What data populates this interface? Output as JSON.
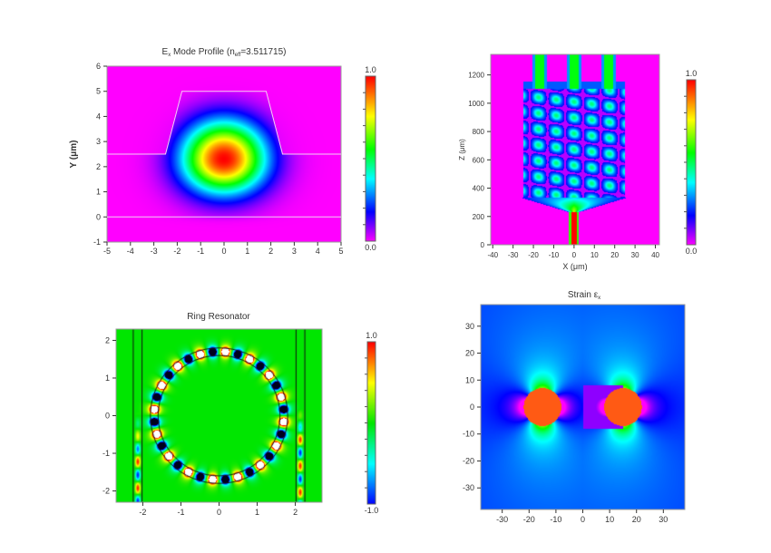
{
  "chart_data": [
    {
      "type": "heatmap",
      "id": "mode",
      "title": "Ex Mode Profile (neff=3.511715)",
      "title_parts": {
        "main": "E",
        "sub1": "x",
        "mid": " Mode Profile (n",
        "sub2": "eff",
        "tail": "=3.511715)"
      },
      "xlabel": "",
      "ylabel": "Y (μm)",
      "xlim": [
        -5,
        5
      ],
      "ylim": [
        -1,
        6
      ],
      "xticks": [
        -5,
        -4,
        -3,
        -2,
        -1,
        0,
        1,
        2,
        3,
        4,
        5
      ],
      "yticks": [
        -1,
        0,
        1,
        2,
        3,
        4,
        5,
        6
      ],
      "colorbar": {
        "min_label": "0.0",
        "max_label": "1.0",
        "range": [
          0,
          1
        ],
        "colormap": "magenta-blue-cyan-green-yellow-red"
      },
      "structure": {
        "waveguide_top_y": 5,
        "slab_y": 2.5,
        "substrate_y": 0,
        "top_x": [
          -1.8,
          1.8
        ],
        "base_x": [
          -2.5,
          2.5
        ]
      },
      "peak": {
        "x": 0,
        "y": 2.3,
        "value": 1.0
      }
    },
    {
      "type": "heatmap",
      "id": "mmi",
      "title": "",
      "xlabel": "X (μm)",
      "ylabel": "Z (μm)",
      "xlim": [
        -41,
        42
      ],
      "ylim": [
        0,
        1345
      ],
      "xticks": [
        -40,
        -30,
        -20,
        -10,
        0,
        10,
        20,
        30,
        40
      ],
      "yticks": [
        0,
        200,
        400,
        600,
        800,
        1000,
        1200
      ],
      "colorbar": {
        "min_label": "0.0",
        "max_label": "1.0",
        "range": [
          0,
          1
        ],
        "colormap": "magenta-blue-cyan-green-yellow-red"
      },
      "structure": {
        "input_width": 4,
        "outputs_x": [
          -17,
          0,
          17
        ],
        "mmi_z": [
          300,
          1100
        ],
        "mmi_x": [
          -25,
          25
        ]
      }
    },
    {
      "type": "heatmap",
      "id": "ring",
      "title": "Ring Resonator",
      "xlabel": "",
      "ylabel": "",
      "xlim": [
        -2.7,
        2.7
      ],
      "ylim": [
        -2.3,
        2.3
      ],
      "xticks": [
        -2,
        -1,
        0,
        1,
        2
      ],
      "yticks": [
        -2,
        -1,
        0,
        1,
        2
      ],
      "colorbar": {
        "min_label": "-1.0",
        "max_label": "1.0",
        "range": [
          -1,
          1
        ],
        "colormap": "blue-cyan-green-yellow-red"
      },
      "structure": {
        "ring_radius_inner": 1.6,
        "ring_radius_outer": 1.8,
        "bus_waveguides_x": [
          [
            -2.25,
            -2.02
          ],
          [
            2.02,
            2.25
          ]
        ],
        "lobes": 32
      }
    },
    {
      "type": "heatmap",
      "id": "strain",
      "title": "Strain εx",
      "title_parts": {
        "main": "Strain ε",
        "sub1": "x"
      },
      "xlabel": "",
      "ylabel": "",
      "xlim": [
        -38,
        38
      ],
      "ylim": [
        -38,
        38
      ],
      "xticks": [
        -30,
        -20,
        -10,
        0,
        10,
        20,
        30
      ],
      "yticks": [
        -30,
        -20,
        -10,
        0,
        10,
        20,
        30
      ],
      "structure": {
        "inclusions": [
          {
            "x": -15,
            "y": 0,
            "r": 7
          },
          {
            "x": 15,
            "y": 0,
            "r": 7
          }
        ]
      }
    }
  ]
}
